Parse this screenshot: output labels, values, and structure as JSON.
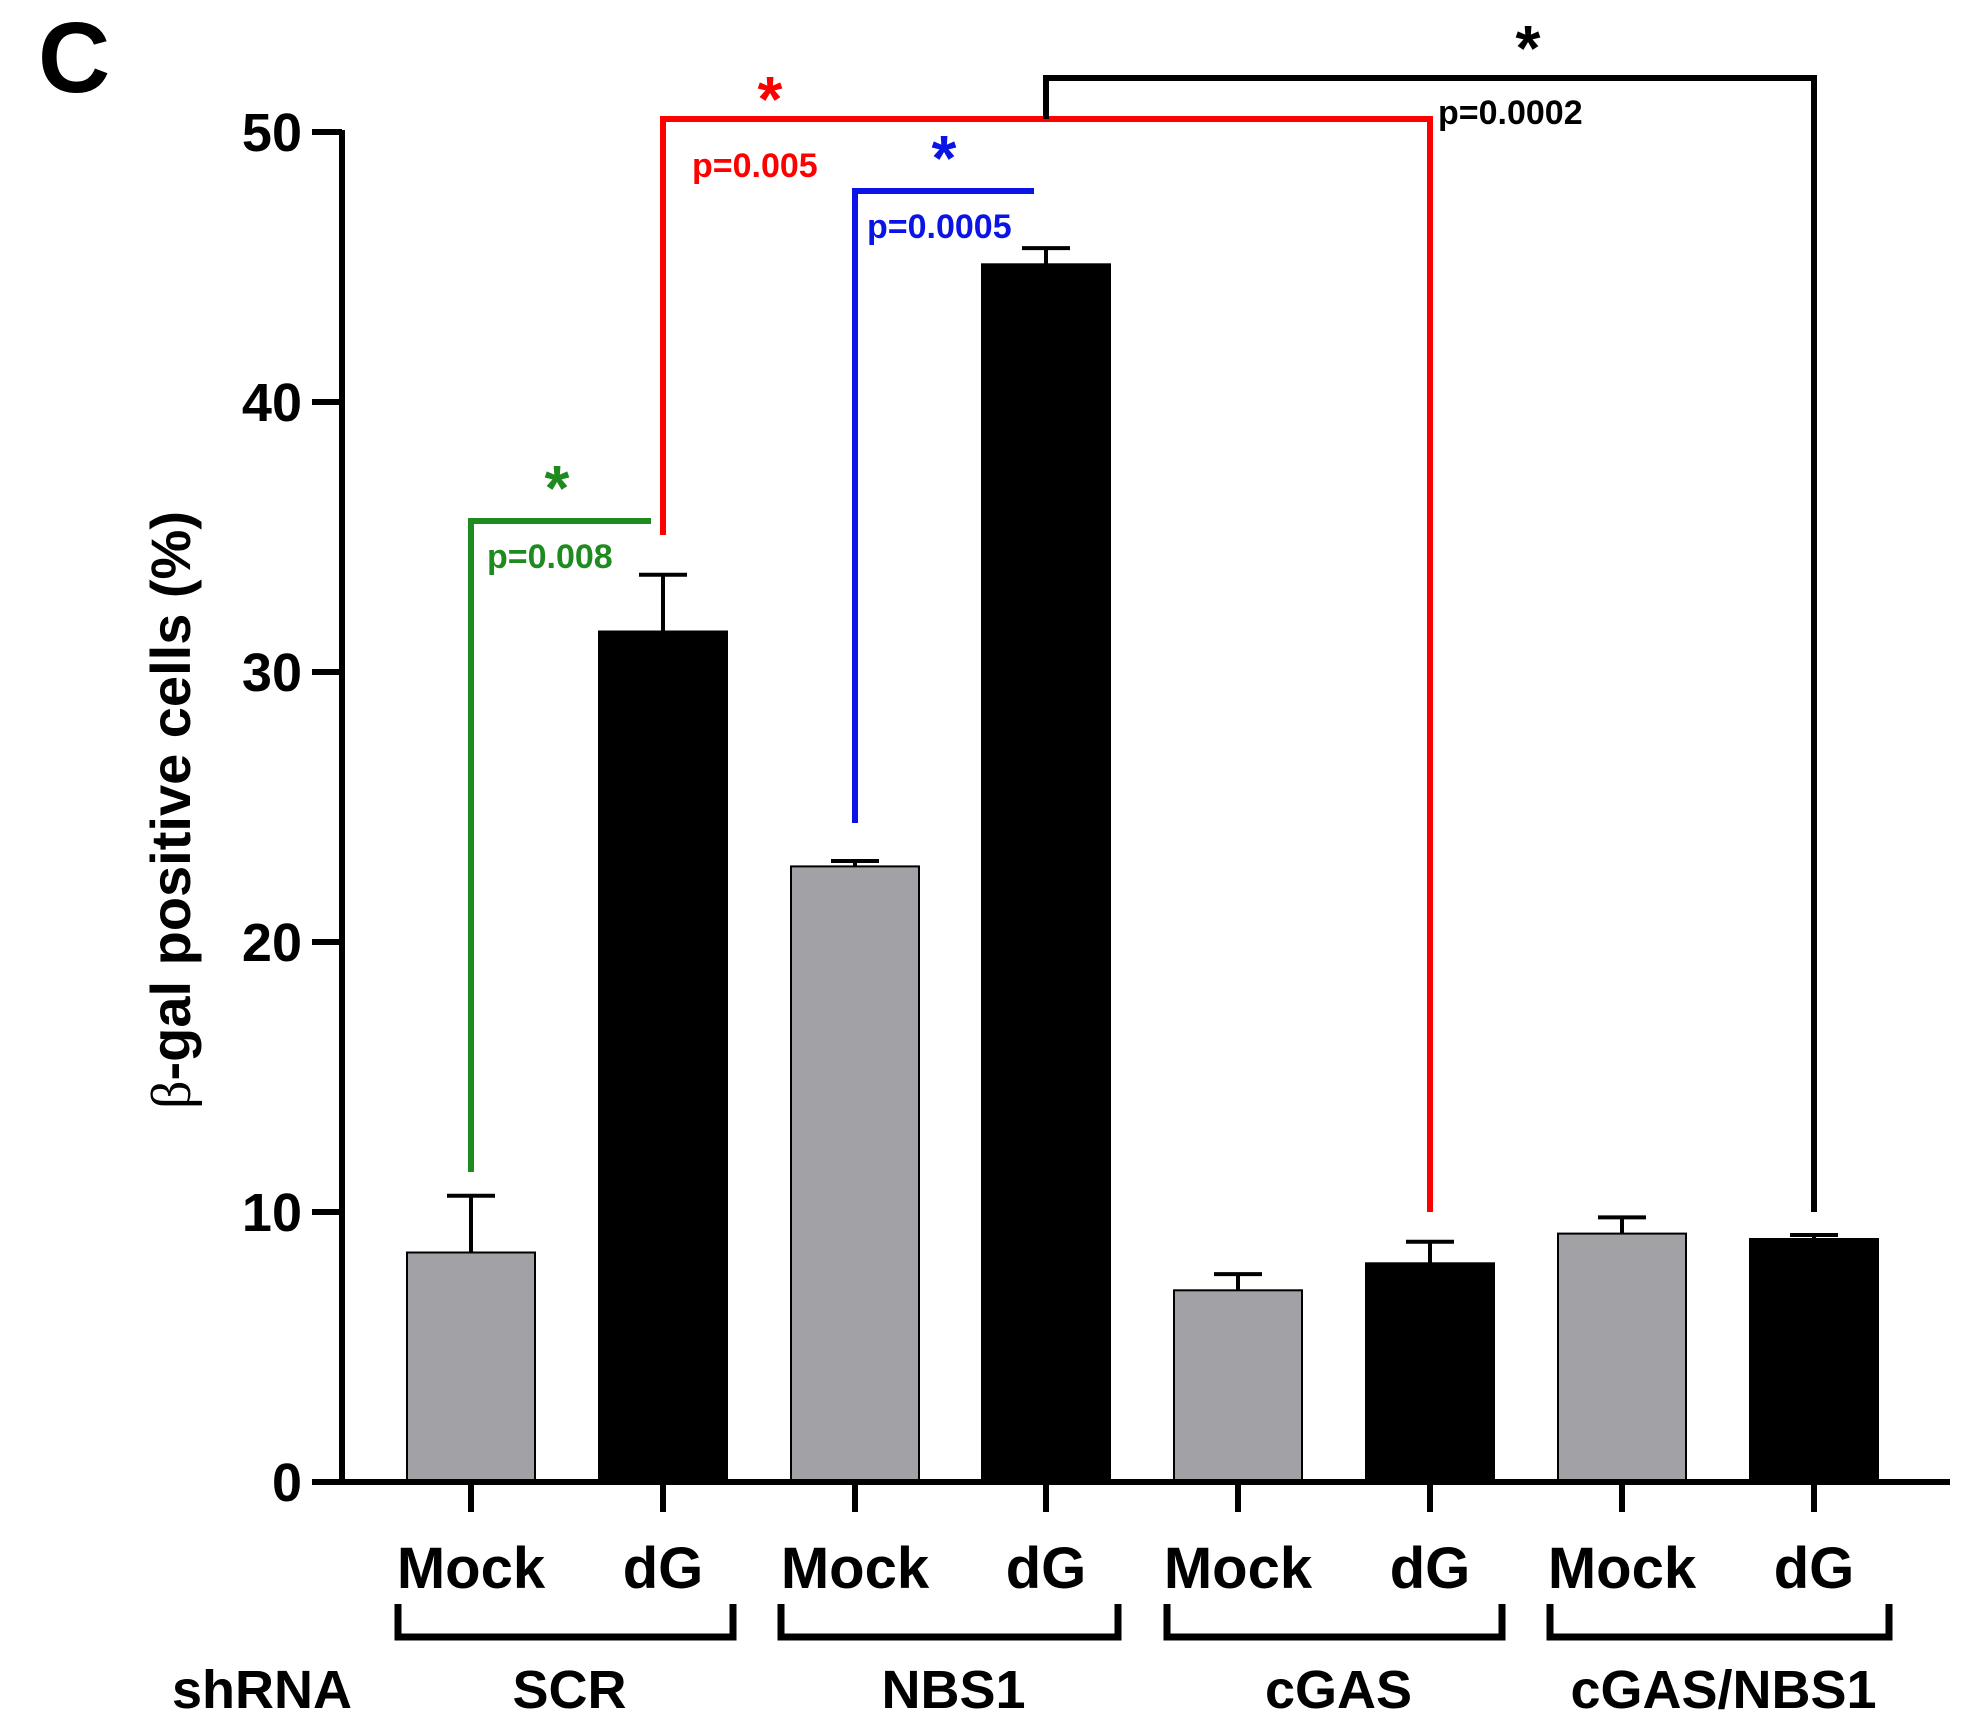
{
  "panel_label": "C",
  "chart_data": {
    "type": "bar",
    "ylabel_prefix": "β",
    "ylabel": "-gal positive cells (%)",
    "ylim": [
      0,
      50
    ],
    "yticks": [
      "0",
      "10",
      "20",
      "30",
      "40",
      "50"
    ],
    "categories": [
      "Mock",
      "dG",
      "Mock",
      "dG",
      "Mock",
      "dG",
      "Mock",
      "dG"
    ],
    "groups_prefix": "shRNA",
    "groups": [
      "SCR",
      "NBS1",
      "cGAS",
      "cGAS/NBS1"
    ],
    "values": [
      8.5,
      31.5,
      22.8,
      45.1,
      7.1,
      8.1,
      9.2,
      9.0
    ],
    "errors": [
      2.1,
      2.1,
      0.2,
      0.6,
      0.6,
      0.8,
      0.6,
      0.15
    ],
    "bar_colors": [
      "#a1a1a6",
      "#000000",
      "#a1a1a6",
      "#000000",
      "#a1a1a6",
      "#000000",
      "#a1a1a6",
      "#000000"
    ],
    "comparisons": [
      {
        "from": 0,
        "to": 1,
        "label": "p=0.008",
        "star": "*",
        "color": "#1f8a1f"
      },
      {
        "from": 1,
        "to": 5,
        "label": "p=0.005",
        "star": "*",
        "color": "#ff0000"
      },
      {
        "from": 2,
        "to": 3,
        "label": "p=0.0005",
        "star": "*",
        "color": "#0a14e6"
      },
      {
        "from": 3,
        "to": 7,
        "label": "p=0.0002",
        "star": "*",
        "color": "#000000"
      }
    ]
  }
}
